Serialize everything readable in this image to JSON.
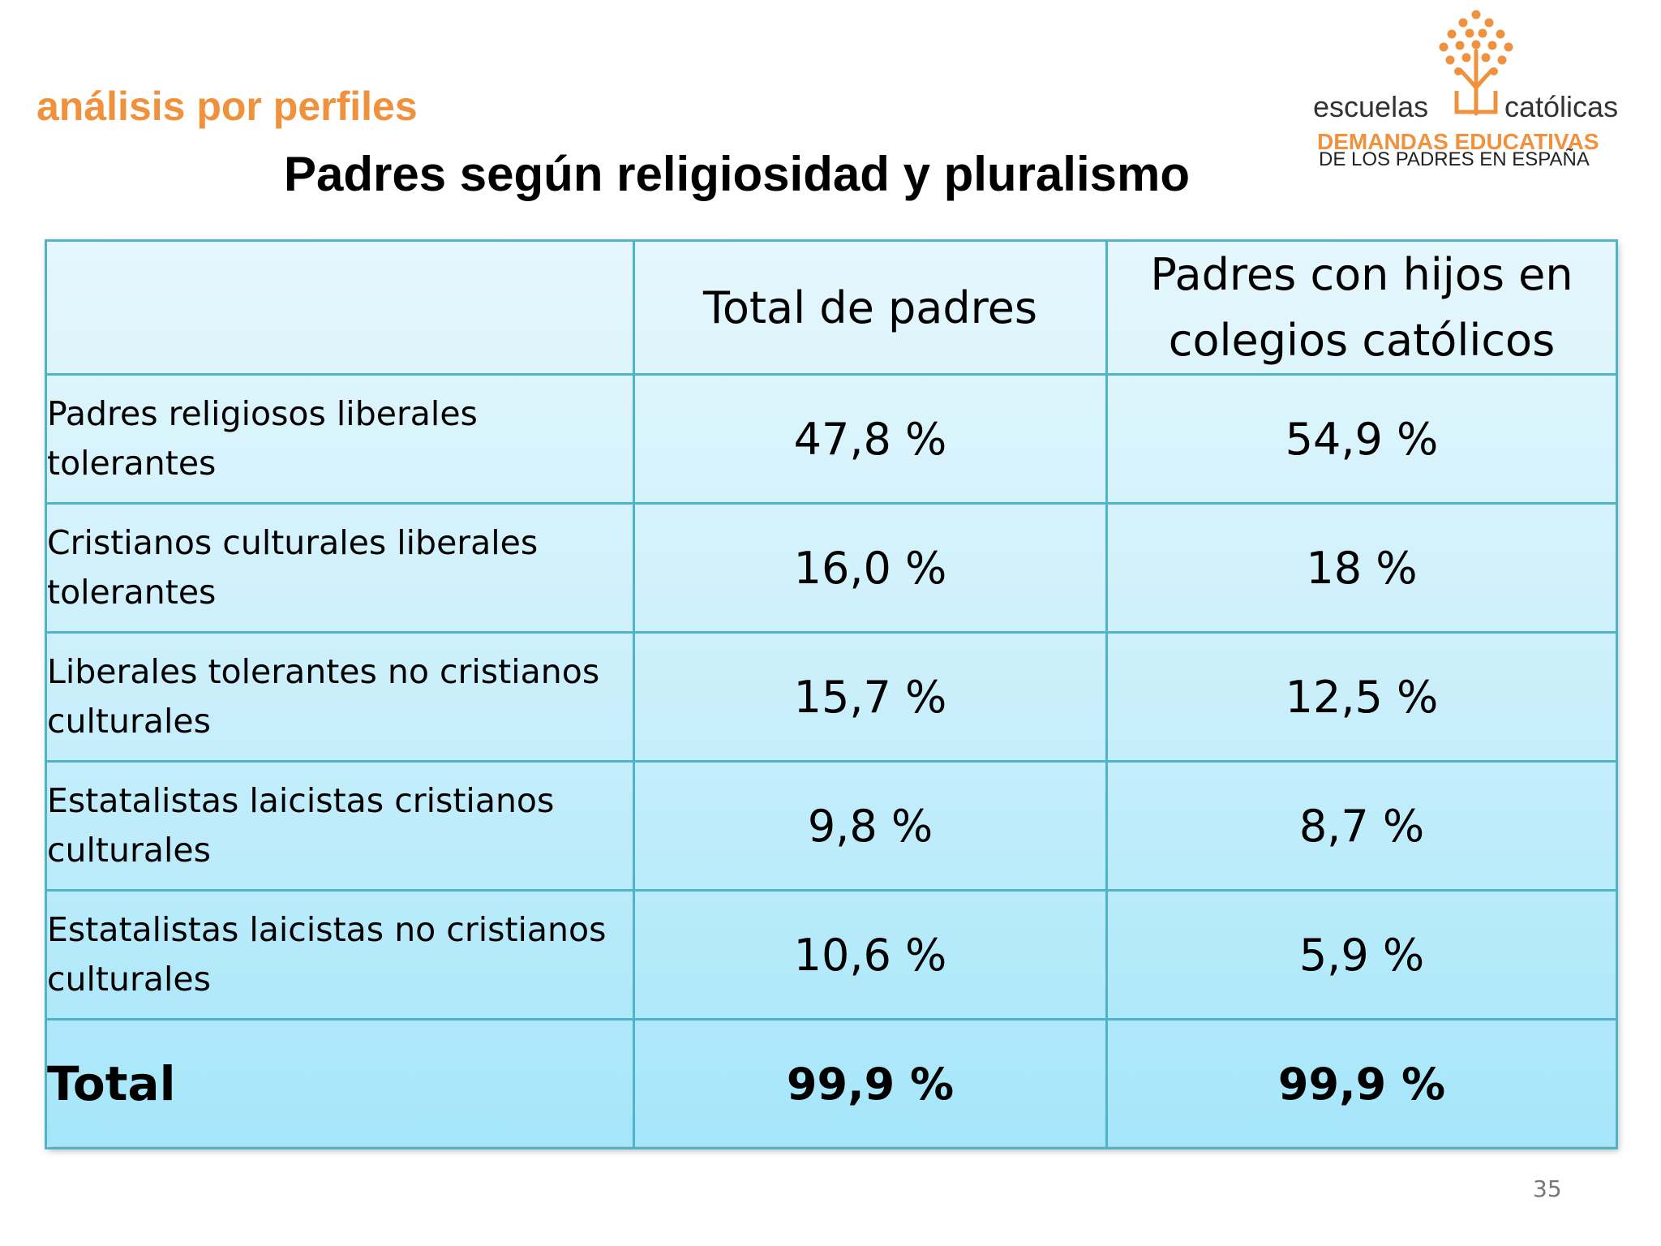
{
  "header": {
    "section_label": "análisis por perfiles",
    "title": "Padres según religiosidad y pluralismo"
  },
  "logo": {
    "word_left": "escuelas",
    "word_right": "católicas",
    "tagline_1": "DEMANDAS EDUCATIVAS",
    "tagline_2": "DE LOS PADRES EN ESPAÑA",
    "icon": "tree-icon",
    "accent_color": "#f0913d"
  },
  "table": {
    "columns": [
      "",
      "Total de padres",
      "Padres con hijos en colegios católicos"
    ],
    "rows": [
      {
        "label": "Padres religiosos liberales tolerantes",
        "total": "47,8 %",
        "catholic": "54,9 %"
      },
      {
        "label": "Cristianos culturales liberales tolerantes",
        "total": "16,0 %",
        "catholic": "18 %"
      },
      {
        "label": "Liberales tolerantes no cristianos culturales",
        "total": "15,7 %",
        "catholic": "12,5 %"
      },
      {
        "label": "Estatalistas laicistas cristianos culturales",
        "total": "9,8 %",
        "catholic": "8,7 %"
      },
      {
        "label": "Estatalistas laicistas no cristianos culturales",
        "total": "10,6 %",
        "catholic": "5,9 %"
      }
    ],
    "total_row": {
      "label": "Total",
      "total": "99,9 %",
      "catholic": "99,9 %"
    },
    "border_color": "#4fb3c9"
  },
  "footer": {
    "page_number": "35"
  }
}
